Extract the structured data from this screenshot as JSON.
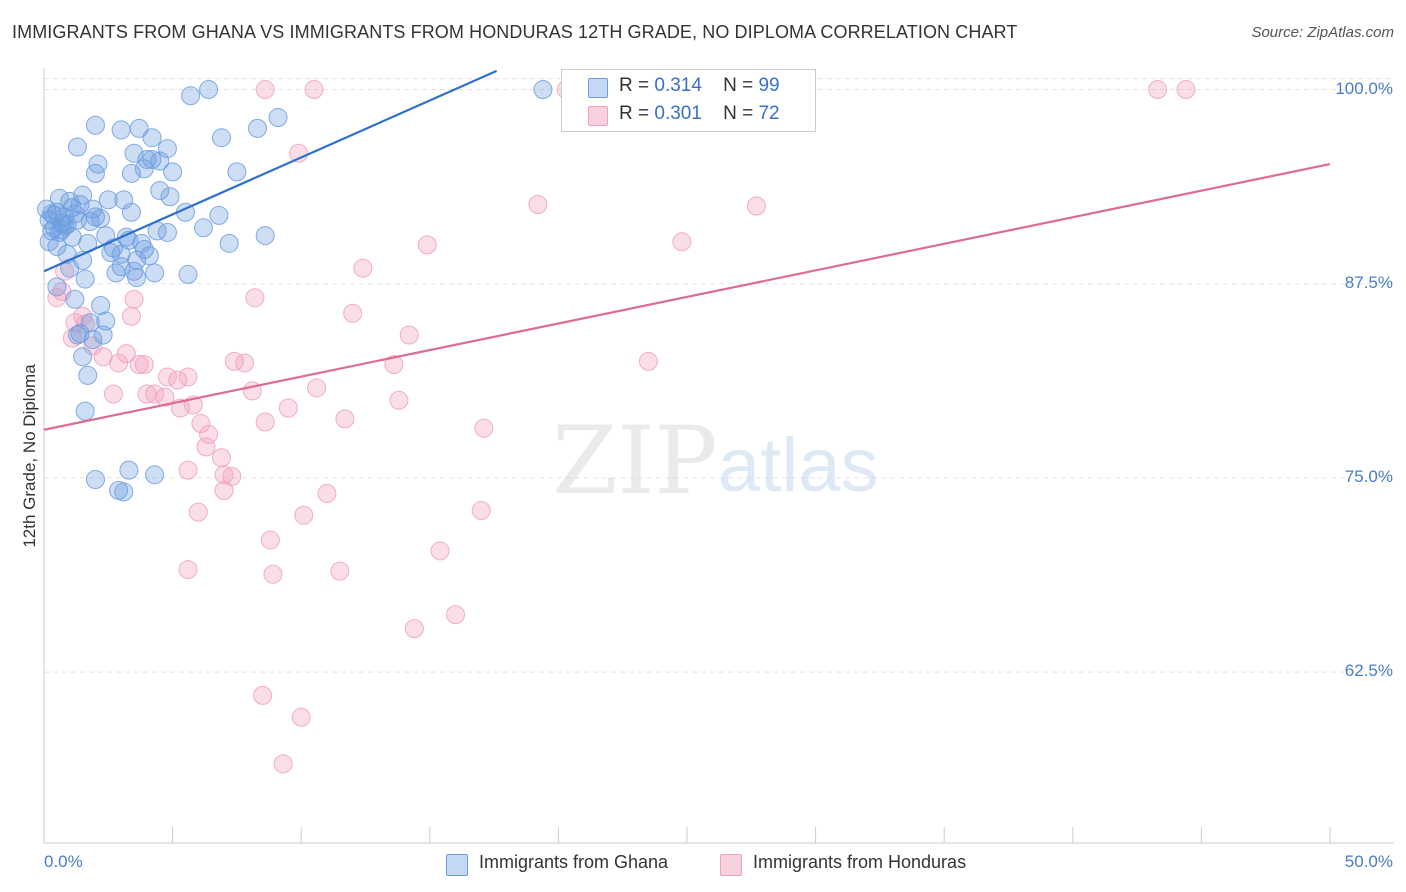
{
  "header": {
    "title": "IMMIGRANTS FROM GHANA VS IMMIGRANTS FROM HONDURAS 12TH GRADE, NO DIPLOMA CORRELATION CHART",
    "source": "Source: ZipAtlas.com"
  },
  "watermark": {
    "zip": "ZIP",
    "atlas": "atlas"
  },
  "legend": {
    "ghana": {
      "r_label": "R =",
      "r_value": "0.314",
      "n_label": "N =",
      "n_value": "99"
    },
    "honduras": {
      "r_label": "R =",
      "r_value": "0.301",
      "n_label": "N =",
      "n_value": "72"
    }
  },
  "chart_data": {
    "type": "scatter",
    "title": "IMMIGRANTS FROM GHANA VS IMMIGRANTS FROM HONDURAS 12TH GRADE, NO DIPLOMA CORRELATION CHART",
    "xlabel": "",
    "ylabel": "12th Grade, No Diploma",
    "xlim": [
      0,
      50
    ],
    "ylim": [
      51.5,
      101
    ],
    "x_tick_labels": [
      "0.0%",
      "50.0%"
    ],
    "y_ticks": [
      100,
      87.5,
      75,
      62.5
    ],
    "y_tick_labels": [
      "100.0%",
      "87.5%",
      "75.0%",
      "62.5%"
    ],
    "grid": true,
    "colors": {
      "ghana": "#6e9ee0",
      "ghana_line": "#2e6fcf",
      "honduras": "#f0a1bb",
      "honduras_line": "#e06a95"
    },
    "series": [
      {
        "name": "Immigrants from Ghana",
        "r": 0.314,
        "n": 99,
        "trend": {
          "x": [
            0,
            17.6
          ],
          "y": [
            88.3,
            101.2
          ]
        },
        "points": [
          [
            0.5,
            92.1
          ],
          [
            0.7,
            91.4
          ],
          [
            0.3,
            90.9
          ],
          [
            1.0,
            92.8
          ],
          [
            0.2,
            91.6
          ],
          [
            0.6,
            90.8
          ],
          [
            1.2,
            92.0
          ],
          [
            0.4,
            91.9
          ],
          [
            0.8,
            91.2
          ],
          [
            0.1,
            92.3
          ],
          [
            1.5,
            93.2
          ],
          [
            1.1,
            90.5
          ],
          [
            0.9,
            89.4
          ],
          [
            1.3,
            91.6
          ],
          [
            2.0,
            91.8
          ],
          [
            1.8,
            91.5
          ],
          [
            2.5,
            92.9
          ],
          [
            0.5,
            87.3
          ],
          [
            1.6,
            87.8
          ],
          [
            1.0,
            88.5
          ],
          [
            1.2,
            86.5
          ],
          [
            1.8,
            85.0
          ],
          [
            2.2,
            86.1
          ],
          [
            1.4,
            84.3
          ],
          [
            2.4,
            85.1
          ],
          [
            1.3,
            84.2
          ],
          [
            1.9,
            83.9
          ],
          [
            2.8,
            88.2
          ],
          [
            2.4,
            90.6
          ],
          [
            3.3,
            90.3
          ],
          [
            3.5,
            88.3
          ],
          [
            3.6,
            87.9
          ],
          [
            4.3,
            88.2
          ],
          [
            3.0,
            89.4
          ],
          [
            2.7,
            89.8
          ],
          [
            4.1,
            89.3
          ],
          [
            3.9,
            89.7
          ],
          [
            3.2,
            90.5
          ],
          [
            3.8,
            90.1
          ],
          [
            4.5,
            93.5
          ],
          [
            3.4,
            92.1
          ],
          [
            3.1,
            92.9
          ],
          [
            2.0,
            94.6
          ],
          [
            2.1,
            95.2
          ],
          [
            3.4,
            94.6
          ],
          [
            3.5,
            95.9
          ],
          [
            1.3,
            96.3
          ],
          [
            2.0,
            97.7
          ],
          [
            3.0,
            97.4
          ],
          [
            3.7,
            97.5
          ],
          [
            4.2,
            96.9
          ],
          [
            4.0,
            95.5
          ],
          [
            3.9,
            94.9
          ],
          [
            4.5,
            95.4
          ],
          [
            4.2,
            95.5
          ],
          [
            4.8,
            96.2
          ],
          [
            5.0,
            94.7
          ],
          [
            4.9,
            93.1
          ],
          [
            5.7,
            99.6
          ],
          [
            6.9,
            96.9
          ],
          [
            6.4,
            100.0
          ],
          [
            7.5,
            94.7
          ],
          [
            8.3,
            97.5
          ],
          [
            9.1,
            98.2
          ],
          [
            4.8,
            90.8
          ],
          [
            5.5,
            92.1
          ],
          [
            7.2,
            90.1
          ],
          [
            8.6,
            90.6
          ],
          [
            1.7,
            81.6
          ],
          [
            1.6,
            79.3
          ],
          [
            2.0,
            74.9
          ],
          [
            2.9,
            74.2
          ],
          [
            3.3,
            75.5
          ],
          [
            3.1,
            74.1
          ],
          [
            1.5,
            82.8
          ],
          [
            2.3,
            84.2
          ],
          [
            4.3,
            75.2
          ],
          [
            6.8,
            91.9
          ],
          [
            5.6,
            88.1
          ],
          [
            0.4,
            91.1
          ],
          [
            0.8,
            91.8
          ],
          [
            1.1,
            92.4
          ],
          [
            0.6,
            93.0
          ],
          [
            0.3,
            92.0
          ],
          [
            0.9,
            91.3
          ],
          [
            1.7,
            90.1
          ],
          [
            2.6,
            89.5
          ],
          [
            0.2,
            90.2
          ],
          [
            1.5,
            89.0
          ],
          [
            3.0,
            88.6
          ],
          [
            4.4,
            90.9
          ],
          [
            6.2,
            91.1
          ],
          [
            2.2,
            91.7
          ],
          [
            1.4,
            92.6
          ],
          [
            0.7,
            91.0
          ],
          [
            1.9,
            92.3
          ],
          [
            0.5,
            89.9
          ],
          [
            3.6,
            89.0
          ],
          [
            19.4,
            100.0
          ]
        ]
      },
      {
        "name": "Immigrants from Honduras",
        "r": 0.301,
        "n": 72,
        "trend": {
          "x": [
            0,
            50
          ],
          "y": [
            78.1,
            95.2
          ]
        },
        "points": [
          [
            0.5,
            86.6
          ],
          [
            0.8,
            88.3
          ],
          [
            1.1,
            84.0
          ],
          [
            1.5,
            85.4
          ],
          [
            1.6,
            84.9
          ],
          [
            1.9,
            83.5
          ],
          [
            2.3,
            82.8
          ],
          [
            2.9,
            82.4
          ],
          [
            3.2,
            83.0
          ],
          [
            3.4,
            85.4
          ],
          [
            3.5,
            86.5
          ],
          [
            3.7,
            82.3
          ],
          [
            3.9,
            82.3
          ],
          [
            4.0,
            80.4
          ],
          [
            4.3,
            80.4
          ],
          [
            4.8,
            81.5
          ],
          [
            4.7,
            80.2
          ],
          [
            5.2,
            81.3
          ],
          [
            5.3,
            79.5
          ],
          [
            5.6,
            81.5
          ],
          [
            5.8,
            79.7
          ],
          [
            6.1,
            78.5
          ],
          [
            6.4,
            77.8
          ],
          [
            6.3,
            77.0
          ],
          [
            6.9,
            76.3
          ],
          [
            7.0,
            75.2
          ],
          [
            7.3,
            75.1
          ],
          [
            7.0,
            74.2
          ],
          [
            7.4,
            82.5
          ],
          [
            7.8,
            82.4
          ],
          [
            8.2,
            86.6
          ],
          [
            8.1,
            80.6
          ],
          [
            8.6,
            78.6
          ],
          [
            9.5,
            79.5
          ],
          [
            10.6,
            80.8
          ],
          [
            11.7,
            78.8
          ],
          [
            12.0,
            85.6
          ],
          [
            12.4,
            88.5
          ],
          [
            13.6,
            82.3
          ],
          [
            13.8,
            80.0
          ],
          [
            14.2,
            84.2
          ],
          [
            14.9,
            90.0
          ],
          [
            17.1,
            78.2
          ],
          [
            17.0,
            72.9
          ],
          [
            19.2,
            92.6
          ],
          [
            23.5,
            82.5
          ],
          [
            24.8,
            90.2
          ],
          [
            27.7,
            92.5
          ],
          [
            6.0,
            72.8
          ],
          [
            8.8,
            71.0
          ],
          [
            8.9,
            68.8
          ],
          [
            10.1,
            72.6
          ],
          [
            11.0,
            74.0
          ],
          [
            11.5,
            69.0
          ],
          [
            14.4,
            65.3
          ],
          [
            15.4,
            70.3
          ],
          [
            16.0,
            66.2
          ],
          [
            5.6,
            69.1
          ],
          [
            8.5,
            61.0
          ],
          [
            10.0,
            59.6
          ],
          [
            9.3,
            56.6
          ],
          [
            5.6,
            75.5
          ],
          [
            8.6,
            100.0
          ],
          [
            10.5,
            100.0
          ],
          [
            9.9,
            95.9
          ],
          [
            20.3,
            100.0
          ],
          [
            24.8,
            100.0
          ],
          [
            43.3,
            100.0
          ],
          [
            44.4,
            100.0
          ],
          [
            1.2,
            85.0
          ],
          [
            0.7,
            87.0
          ],
          [
            2.7,
            80.4
          ]
        ]
      }
    ]
  },
  "bottom_legend": {
    "ghana_label": "Immigrants from Ghana",
    "honduras_label": "Immigrants from Honduras"
  }
}
